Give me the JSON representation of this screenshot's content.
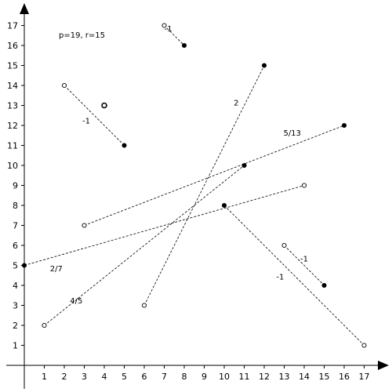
{
  "chart_data": {
    "type": "scatter",
    "title": "",
    "xlabel": "",
    "ylabel": "",
    "xlim": [
      0,
      18
    ],
    "ylim": [
      0,
      18
    ],
    "x_ticks": [
      1,
      2,
      3,
      4,
      5,
      6,
      7,
      8,
      9,
      10,
      11,
      12,
      13,
      14,
      15,
      16,
      17
    ],
    "y_ticks": [
      1,
      2,
      3,
      4,
      5,
      6,
      7,
      8,
      9,
      10,
      11,
      12,
      13,
      14,
      15,
      16,
      17
    ],
    "grid": false,
    "parameters_text": "p=19, r=15",
    "segments": [
      {
        "from": [
          7,
          17
        ],
        "to": [
          8,
          16
        ],
        "label": "-1",
        "label_at": [
          7.2,
          16.7
        ]
      },
      {
        "from": [
          2,
          14
        ],
        "to": [
          5,
          11
        ],
        "label": "-1",
        "label_at": [
          3.1,
          12.1
        ]
      },
      {
        "from": [
          6,
          3
        ],
        "to": [
          12,
          15
        ],
        "label": "2",
        "label_at": [
          10.6,
          13.0
        ]
      },
      {
        "from": [
          3,
          7
        ],
        "to": [
          16,
          12
        ],
        "label": "5/13",
        "label_at": [
          13.4,
          11.5
        ]
      },
      {
        "from": [
          1,
          2
        ],
        "to": [
          11,
          10
        ],
        "label": "4/5",
        "label_at": [
          2.6,
          3.1
        ]
      },
      {
        "from": [
          0,
          5
        ],
        "to": [
          14,
          9
        ],
        "label": "2/7",
        "label_at": [
          1.6,
          4.7
        ]
      },
      {
        "from": [
          10,
          8
        ],
        "to": [
          17,
          1
        ],
        "label": "-1",
        "label_at": [
          12.8,
          4.3
        ]
      },
      {
        "from": [
          13,
          6
        ],
        "to": [
          15,
          4
        ],
        "label": "-1",
        "label_at": [
          14.0,
          5.2
        ]
      }
    ],
    "points": [
      {
        "x": 7,
        "y": 17,
        "filled": false
      },
      {
        "x": 8,
        "y": 16,
        "filled": true
      },
      {
        "x": 2,
        "y": 14,
        "filled": false
      },
      {
        "x": 5,
        "y": 11,
        "filled": true
      },
      {
        "x": 4,
        "y": 13,
        "filled": false,
        "bold": true
      },
      {
        "x": 6,
        "y": 3,
        "filled": false
      },
      {
        "x": 12,
        "y": 15,
        "filled": true
      },
      {
        "x": 3,
        "y": 7,
        "filled": false
      },
      {
        "x": 16,
        "y": 12,
        "filled": true
      },
      {
        "x": 1,
        "y": 2,
        "filled": false
      },
      {
        "x": 11,
        "y": 10,
        "filled": true
      },
      {
        "x": 0,
        "y": 5,
        "filled": true
      },
      {
        "x": 14,
        "y": 9,
        "filled": false
      },
      {
        "x": 10,
        "y": 8,
        "filled": true
      },
      {
        "x": 17,
        "y": 1,
        "filled": false
      },
      {
        "x": 13,
        "y": 6,
        "filled": false
      },
      {
        "x": 15,
        "y": 4,
        "filled": true
      }
    ]
  }
}
